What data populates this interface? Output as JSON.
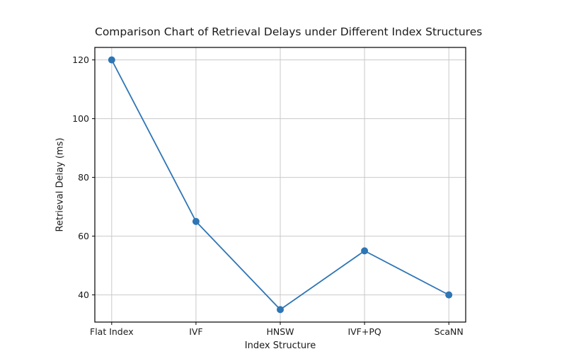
{
  "chart_data": {
    "type": "line",
    "title": "Comparison Chart of Retrieval Delays under Different Index Structures",
    "xlabel": "Index Structure",
    "ylabel": "Retrieval Delay (ms)",
    "categories": [
      "Flat Index",
      "IVF",
      "HNSW",
      "IVF+PQ",
      "ScaNN"
    ],
    "series": [
      {
        "name": "Retrieval Delay",
        "values": [
          120,
          65,
          35,
          55,
          40
        ]
      }
    ],
    "yticks": [
      40,
      60,
      80,
      100,
      120
    ],
    "ylim": [
      30.75,
      124.25
    ],
    "x_range": [
      -0.2,
      4.2
    ],
    "grid": true,
    "legend": "none",
    "line_color": "#2e75b5",
    "marker": "circle",
    "grid_color": "#c9c9c9",
    "spine_color": "#000000",
    "text_color": "#1a1a1a"
  }
}
